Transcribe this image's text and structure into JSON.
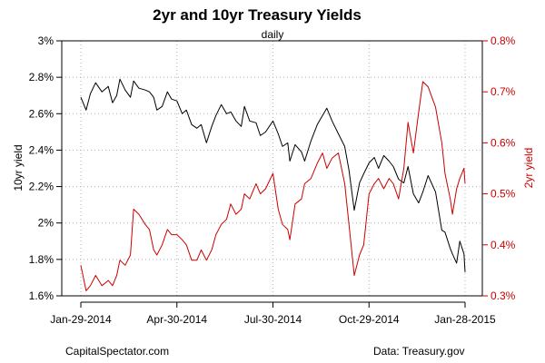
{
  "chart_data": {
    "type": "line",
    "title": "2yr and 10yr Treasury Yields",
    "subtitle": "daily",
    "ylabel_left": "10yr yield",
    "ylabel_right": "2yr yield",
    "left_axis": {
      "ticks": [
        "1.6%",
        "1.8%",
        "2%",
        "2.2%",
        "2.4%",
        "2.6%",
        "2.8%",
        "3%"
      ],
      "ylim": [
        1.6,
        3.0
      ]
    },
    "right_axis": {
      "ticks": [
        "0.3%",
        "0.4%",
        "0.5%",
        "0.6%",
        "0.7%",
        "0.8%"
      ],
      "ylim": [
        0.3,
        0.8
      ]
    },
    "x_ticks": [
      "Jan-29-2014",
      "Apr-30-2014",
      "Jul-30-2014",
      "Oct-29-2014",
      "Jan-28-2015"
    ],
    "x_range": [
      "2014-01-29",
      "2015-01-28"
    ],
    "grid": true,
    "series": [
      {
        "name": "10yr yield",
        "axis": "left",
        "color": "#000000",
        "points": [
          [
            "2014-01-29",
            2.69
          ],
          [
            "2014-02-03",
            2.62
          ],
          [
            "2014-02-07",
            2.71
          ],
          [
            "2014-02-12",
            2.77
          ],
          [
            "2014-02-18",
            2.72
          ],
          [
            "2014-02-24",
            2.75
          ],
          [
            "2014-02-28",
            2.66
          ],
          [
            "2014-03-04",
            2.7
          ],
          [
            "2014-03-07",
            2.79
          ],
          [
            "2014-03-12",
            2.73
          ],
          [
            "2014-03-17",
            2.69
          ],
          [
            "2014-03-20",
            2.78
          ],
          [
            "2014-03-25",
            2.74
          ],
          [
            "2014-03-31",
            2.73
          ],
          [
            "2014-04-04",
            2.72
          ],
          [
            "2014-04-08",
            2.69
          ],
          [
            "2014-04-11",
            2.62
          ],
          [
            "2014-04-16",
            2.64
          ],
          [
            "2014-04-21",
            2.72
          ],
          [
            "2014-04-25",
            2.68
          ],
          [
            "2014-04-30",
            2.67
          ],
          [
            "2014-05-05",
            2.6
          ],
          [
            "2014-05-09",
            2.62
          ],
          [
            "2014-05-14",
            2.54
          ],
          [
            "2014-05-19",
            2.52
          ],
          [
            "2014-05-23",
            2.54
          ],
          [
            "2014-05-28",
            2.44
          ],
          [
            "2014-06-02",
            2.53
          ],
          [
            "2014-06-06",
            2.59
          ],
          [
            "2014-06-11",
            2.65
          ],
          [
            "2014-06-16",
            2.6
          ],
          [
            "2014-06-20",
            2.61
          ],
          [
            "2014-06-25",
            2.56
          ],
          [
            "2014-06-30",
            2.53
          ],
          [
            "2014-07-03",
            2.64
          ],
          [
            "2014-07-08",
            2.56
          ],
          [
            "2014-07-14",
            2.55
          ],
          [
            "2014-07-18",
            2.48
          ],
          [
            "2014-07-23",
            2.5
          ],
          [
            "2014-07-30",
            2.56
          ],
          [
            "2014-08-04",
            2.49
          ],
          [
            "2014-08-08",
            2.42
          ],
          [
            "2014-08-13",
            2.44
          ],
          [
            "2014-08-15",
            2.34
          ],
          [
            "2014-08-20",
            2.43
          ],
          [
            "2014-08-26",
            2.39
          ],
          [
            "2014-08-29",
            2.34
          ],
          [
            "2014-09-04",
            2.45
          ],
          [
            "2014-09-10",
            2.54
          ],
          [
            "2014-09-15",
            2.59
          ],
          [
            "2014-09-19",
            2.63
          ],
          [
            "2014-09-24",
            2.56
          ],
          [
            "2014-09-30",
            2.49
          ],
          [
            "2014-10-06",
            2.42
          ],
          [
            "2014-10-10",
            2.29
          ],
          [
            "2014-10-15",
            2.07
          ],
          [
            "2014-10-20",
            2.22
          ],
          [
            "2014-10-24",
            2.27
          ],
          [
            "2014-10-29",
            2.33
          ],
          [
            "2014-11-03",
            2.36
          ],
          [
            "2014-11-07",
            2.3
          ],
          [
            "2014-11-12",
            2.37
          ],
          [
            "2014-11-17",
            2.34
          ],
          [
            "2014-11-21",
            2.31
          ],
          [
            "2014-11-26",
            2.24
          ],
          [
            "2014-12-01",
            2.22
          ],
          [
            "2014-12-05",
            2.31
          ],
          [
            "2014-12-10",
            2.16
          ],
          [
            "2014-12-15",
            2.11
          ],
          [
            "2014-12-19",
            2.17
          ],
          [
            "2014-12-24",
            2.26
          ],
          [
            "2014-12-31",
            2.17
          ],
          [
            "2015-01-06",
            1.96
          ],
          [
            "2015-01-09",
            1.95
          ],
          [
            "2015-01-14",
            1.86
          ],
          [
            "2015-01-16",
            1.83
          ],
          [
            "2015-01-20",
            1.78
          ],
          [
            "2015-01-23",
            1.9
          ],
          [
            "2015-01-27",
            1.83
          ],
          [
            "2015-01-28",
            1.73
          ]
        ]
      },
      {
        "name": "2yr yield",
        "axis": "right",
        "color": "#cc0000",
        "points": [
          [
            "2014-01-29",
            0.36
          ],
          [
            "2014-02-03",
            0.31
          ],
          [
            "2014-02-07",
            0.32
          ],
          [
            "2014-02-12",
            0.34
          ],
          [
            "2014-02-18",
            0.32
          ],
          [
            "2014-02-24",
            0.33
          ],
          [
            "2014-02-28",
            0.32
          ],
          [
            "2014-03-04",
            0.34
          ],
          [
            "2014-03-07",
            0.37
          ],
          [
            "2014-03-12",
            0.36
          ],
          [
            "2014-03-17",
            0.38
          ],
          [
            "2014-03-20",
            0.47
          ],
          [
            "2014-03-25",
            0.46
          ],
          [
            "2014-03-31",
            0.44
          ],
          [
            "2014-04-04",
            0.43
          ],
          [
            "2014-04-08",
            0.39
          ],
          [
            "2014-04-11",
            0.38
          ],
          [
            "2014-04-16",
            0.4
          ],
          [
            "2014-04-21",
            0.43
          ],
          [
            "2014-04-25",
            0.42
          ],
          [
            "2014-04-30",
            0.42
          ],
          [
            "2014-05-05",
            0.41
          ],
          [
            "2014-05-09",
            0.4
          ],
          [
            "2014-05-14",
            0.37
          ],
          [
            "2014-05-19",
            0.37
          ],
          [
            "2014-05-23",
            0.39
          ],
          [
            "2014-05-28",
            0.37
          ],
          [
            "2014-06-02",
            0.39
          ],
          [
            "2014-06-06",
            0.42
          ],
          [
            "2014-06-11",
            0.44
          ],
          [
            "2014-06-16",
            0.45
          ],
          [
            "2014-06-20",
            0.48
          ],
          [
            "2014-06-25",
            0.46
          ],
          [
            "2014-06-30",
            0.47
          ],
          [
            "2014-07-03",
            0.5
          ],
          [
            "2014-07-08",
            0.49
          ],
          [
            "2014-07-14",
            0.52
          ],
          [
            "2014-07-18",
            0.5
          ],
          [
            "2014-07-23",
            0.51
          ],
          [
            "2014-07-30",
            0.54
          ],
          [
            "2014-08-04",
            0.47
          ],
          [
            "2014-08-08",
            0.44
          ],
          [
            "2014-08-13",
            0.43
          ],
          [
            "2014-08-15",
            0.41
          ],
          [
            "2014-08-20",
            0.48
          ],
          [
            "2014-08-26",
            0.49
          ],
          [
            "2014-08-29",
            0.52
          ],
          [
            "2014-09-04",
            0.53
          ],
          [
            "2014-09-10",
            0.56
          ],
          [
            "2014-09-15",
            0.58
          ],
          [
            "2014-09-19",
            0.55
          ],
          [
            "2014-09-24",
            0.57
          ],
          [
            "2014-09-30",
            0.58
          ],
          [
            "2014-10-06",
            0.52
          ],
          [
            "2014-10-10",
            0.44
          ],
          [
            "2014-10-15",
            0.34
          ],
          [
            "2014-10-20",
            0.38
          ],
          [
            "2014-10-24",
            0.4
          ],
          [
            "2014-10-29",
            0.5
          ],
          [
            "2014-11-03",
            0.52
          ],
          [
            "2014-11-07",
            0.53
          ],
          [
            "2014-11-12",
            0.51
          ],
          [
            "2014-11-17",
            0.53
          ],
          [
            "2014-11-21",
            0.52
          ],
          [
            "2014-11-26",
            0.49
          ],
          [
            "2014-12-01",
            0.55
          ],
          [
            "2014-12-05",
            0.64
          ],
          [
            "2014-12-10",
            0.58
          ],
          [
            "2014-12-15",
            0.66
          ],
          [
            "2014-12-19",
            0.72
          ],
          [
            "2014-12-24",
            0.71
          ],
          [
            "2014-12-31",
            0.67
          ],
          [
            "2015-01-06",
            0.6
          ],
          [
            "2015-01-09",
            0.54
          ],
          [
            "2015-01-14",
            0.49
          ],
          [
            "2015-01-16",
            0.46
          ],
          [
            "2015-01-20",
            0.51
          ],
          [
            "2015-01-23",
            0.53
          ],
          [
            "2015-01-27",
            0.55
          ],
          [
            "2015-01-28",
            0.52
          ]
        ]
      }
    ]
  },
  "footer": {
    "left": "CapitalSpectator.com",
    "right": "Data: Treasury.gov"
  }
}
